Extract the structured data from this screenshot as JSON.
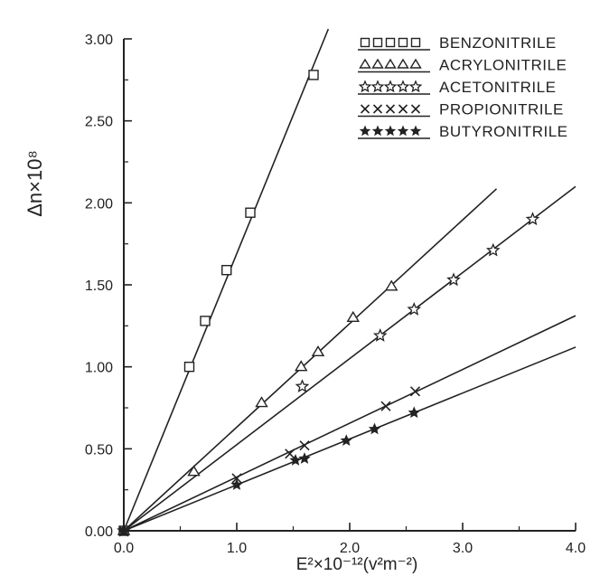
{
  "chart_data": {
    "type": "scatter",
    "title": "",
    "xlabel": "E²×10⁻¹²(v²m⁻²)",
    "ylabel": "Δn×10⁸",
    "xlim": [
      0,
      4.0
    ],
    "ylim": [
      0,
      3.0
    ],
    "x_ticks": [
      "0.0",
      "1.0",
      "2.0",
      "3.0",
      "4.0"
    ],
    "y_ticks": [
      "0.00",
      "0.50",
      "1.00",
      "1.50",
      "2.00",
      "2.50",
      "3.00"
    ],
    "grid": false,
    "legend_position": "top-right",
    "series": [
      {
        "name": "BENZONITRILE",
        "marker": "square",
        "x": [
          0.0,
          0.58,
          0.72,
          0.91,
          1.12,
          1.68
        ],
        "y": [
          0.0,
          1.0,
          1.28,
          1.59,
          1.94,
          2.78
        ],
        "fit_slope": 1.69
      },
      {
        "name": "ACRYLONITRILE",
        "marker": "triangle",
        "x": [
          0.0,
          0.62,
          1.22,
          1.57,
          1.72,
          2.03,
          2.37
        ],
        "y": [
          0.0,
          0.36,
          0.78,
          1.0,
          1.09,
          1.3,
          1.49
        ],
        "fit_slope": 0.632
      },
      {
        "name": "ACETONITRILE",
        "marker": "star-outline",
        "x": [
          0.0,
          1.58,
          2.27,
          2.57,
          2.92,
          3.27,
          3.62
        ],
        "y": [
          0.0,
          0.88,
          1.19,
          1.35,
          1.53,
          1.71,
          1.9
        ],
        "fit_slope": 0.525
      },
      {
        "name": "PROPIONITRILE",
        "marker": "x",
        "x": [
          0.0,
          1.0,
          1.47,
          1.6,
          2.32,
          2.58
        ],
        "y": [
          0.0,
          0.32,
          0.47,
          0.52,
          0.76,
          0.85
        ],
        "fit_slope": 0.328
      },
      {
        "name": "BUTYRONITRILE",
        "marker": "star-solid",
        "x": [
          0.0,
          1.0,
          1.52,
          1.6,
          1.97,
          2.22,
          2.57
        ],
        "y": [
          0.0,
          0.28,
          0.43,
          0.44,
          0.55,
          0.62,
          0.72
        ],
        "fit_slope": 0.28
      }
    ]
  }
}
